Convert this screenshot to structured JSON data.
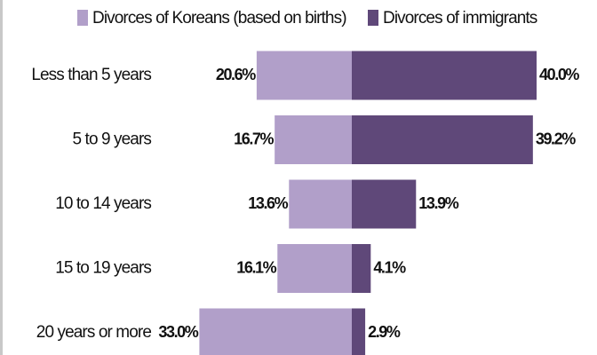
{
  "chart_data": {
    "type": "diverging-bar",
    "categories": [
      "Less than 5 years",
      "5 to 9 years",
      "10 to 14 years",
      "15 to 19 years",
      "20 years or more"
    ],
    "series": [
      {
        "name": "Divorces of Koreans (based on births)",
        "color": "#b19fc9",
        "side": "left",
        "values": [
          20.6,
          16.7,
          13.6,
          16.1,
          33.0
        ],
        "value_labels": [
          "20.6%",
          "16.7%",
          "13.6%",
          "16.1%",
          "33.0%"
        ]
      },
      {
        "name": "Divorces of immigrants",
        "color": "#5f4879",
        "side": "right",
        "values": [
          40.0,
          39.2,
          13.9,
          4.1,
          2.9
        ],
        "value_labels": [
          "40.0%",
          "39.2%",
          "13.9%",
          "4.1%",
          "2.9%"
        ]
      }
    ]
  }
}
